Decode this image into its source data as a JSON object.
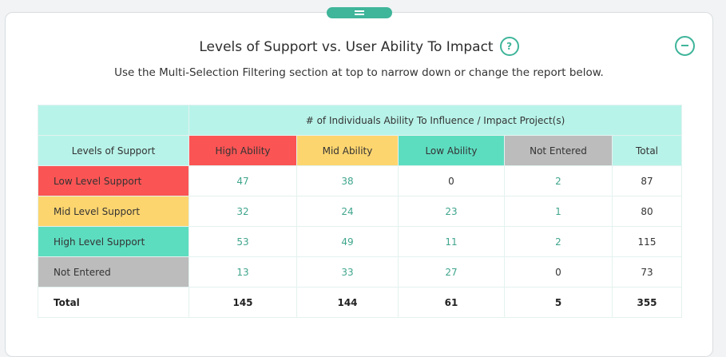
{
  "title": "Levels of Support vs. User Ability To Impact",
  "help_icon": "?",
  "subtitle": "Use the Multi-Selection Filtering section at top to narrow down or change the report below.",
  "table": {
    "group_header": "# of Individuals Ability To Influence / Impact Project(s)",
    "row_header": "Levels of Support",
    "columns": [
      "High Ability",
      "Mid Ability",
      "Low Ability",
      "Not Entered",
      "Total"
    ],
    "rows": [
      {
        "label": "Low Level Support",
        "values": [
          "47",
          "38",
          "0",
          "2",
          "87"
        ]
      },
      {
        "label": "Mid Level Support",
        "values": [
          "32",
          "24",
          "23",
          "1",
          "80"
        ]
      },
      {
        "label": "High Level Support",
        "values": [
          "53",
          "49",
          "11",
          "2",
          "115"
        ]
      },
      {
        "label": "Not Entered",
        "values": [
          "13",
          "33",
          "27",
          "0",
          "73"
        ]
      }
    ],
    "total_row": {
      "label": "Total",
      "values": [
        "145",
        "144",
        "61",
        "5",
        "355"
      ]
    }
  },
  "colors": {
    "accent": "#3fb59a",
    "mint": "#b8f3e9",
    "red": "#fb5454",
    "yellow": "#fdd56f",
    "teal": "#5dddc0",
    "gray": "#bcbcbc"
  }
}
